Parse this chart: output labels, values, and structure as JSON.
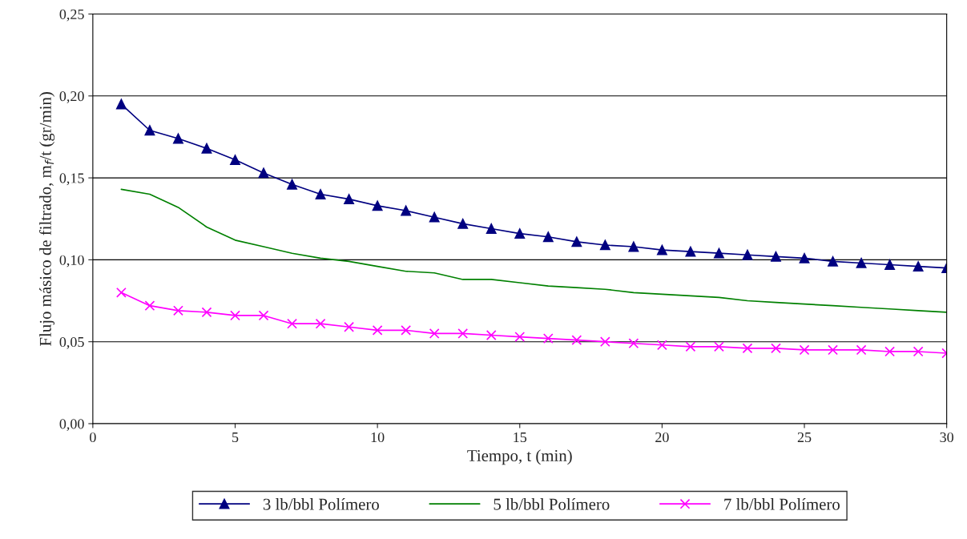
{
  "chart_data": {
    "type": "line",
    "xlabel": "Tiempo, t (min)",
    "ylabel": "Flujo másico de filtrado, m$_{f}$/t (gr/min)",
    "x": [
      1,
      2,
      3,
      4,
      5,
      6,
      7,
      8,
      9,
      10,
      11,
      12,
      13,
      14,
      15,
      16,
      17,
      18,
      19,
      20,
      21,
      22,
      23,
      24,
      25,
      26,
      27,
      28,
      29,
      30
    ],
    "series": [
      {
        "name": "3 lb/bbl Polímero",
        "color": "#000080",
        "marker": "triangle",
        "values": [
          0.195,
          0.179,
          0.174,
          0.168,
          0.161,
          0.153,
          0.146,
          0.14,
          0.137,
          0.133,
          0.13,
          0.126,
          0.122,
          0.119,
          0.116,
          0.114,
          0.111,
          0.109,
          0.108,
          0.106,
          0.105,
          0.104,
          0.103,
          0.102,
          0.101,
          0.099,
          0.098,
          0.097,
          0.096,
          0.095
        ]
      },
      {
        "name": "5 lb/bbl Polímero",
        "color": "#008000",
        "marker": "none",
        "values": [
          0.143,
          0.14,
          0.132,
          0.12,
          0.112,
          0.108,
          0.104,
          0.101,
          0.099,
          0.096,
          0.093,
          0.092,
          0.088,
          0.088,
          0.086,
          0.084,
          0.083,
          0.082,
          0.08,
          0.079,
          0.078,
          0.077,
          0.075,
          0.074,
          0.073,
          0.072,
          0.071,
          0.07,
          0.069,
          0.068
        ]
      },
      {
        "name": "7 lb/bbl Polímero",
        "color": "#ff00ff",
        "marker": "cross",
        "values": [
          0.08,
          0.072,
          0.069,
          0.068,
          0.066,
          0.066,
          0.061,
          0.061,
          0.059,
          0.057,
          0.057,
          0.055,
          0.055,
          0.054,
          0.053,
          0.052,
          0.051,
          0.05,
          0.049,
          0.048,
          0.047,
          0.047,
          0.046,
          0.046,
          0.045,
          0.045,
          0.045,
          0.044,
          0.044,
          0.043
        ]
      }
    ],
    "xlim": [
      0,
      30
    ],
    "xticks": [
      0,
      5,
      10,
      15,
      20,
      25,
      30
    ],
    "ylim": [
      0,
      0.25
    ],
    "yticks": [
      {
        "value": 0,
        "label": "0,00"
      },
      {
        "value": 0.05,
        "label": "0,05"
      },
      {
        "value": 0.1,
        "label": "0,10"
      },
      {
        "value": 0.15,
        "label": "0,15"
      },
      {
        "value": 0.2,
        "label": "0,20"
      },
      {
        "value": 0.25,
        "label": "0,25"
      }
    ],
    "grid": "y",
    "legend": "bottom",
    "line_style": "solid"
  }
}
